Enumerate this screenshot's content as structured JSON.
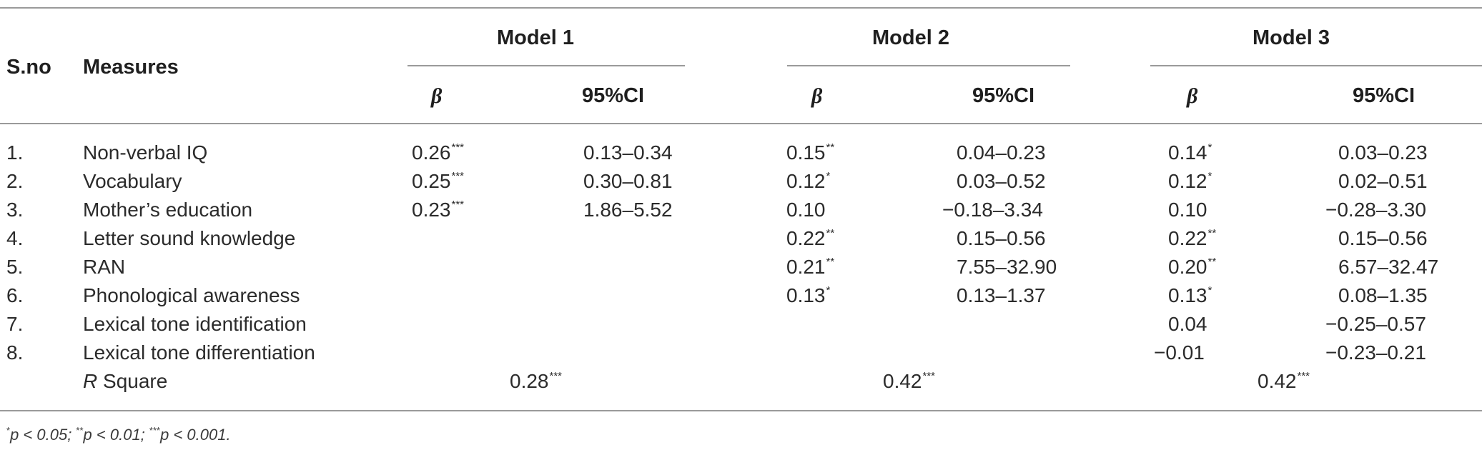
{
  "header": {
    "sno": "S.no",
    "measures": "Measures",
    "models": [
      "Model 1",
      "Model 2",
      "Model 3"
    ],
    "beta": "β",
    "ci": "95%CI"
  },
  "rows": [
    {
      "sno": "1.",
      "measure": "Non-verbal IQ",
      "m1": {
        "b": "0.26",
        "bs": "***",
        "ci": "0.13–0.34"
      },
      "m2": {
        "b": "0.15",
        "bs": "**",
        "ci": "0.04–0.23"
      },
      "m3": {
        "b": "0.14",
        "bs": "*",
        "ci": "0.03–0.23"
      }
    },
    {
      "sno": "2.",
      "measure": "Vocabulary",
      "m1": {
        "b": "0.25",
        "bs": "***",
        "ci": "0.30–0.81"
      },
      "m2": {
        "b": "0.12",
        "bs": "*",
        "ci": "0.03–0.52"
      },
      "m3": {
        "b": "0.12",
        "bs": "*",
        "ci": "0.02–0.51"
      }
    },
    {
      "sno": "3.",
      "measure": "Mother’s education",
      "m1": {
        "b": "0.23",
        "bs": "***",
        "ci": "1.86–5.52"
      },
      "m2": {
        "b": "0.10",
        "bs": "",
        "ci": "−0.18–3.34"
      },
      "m3": {
        "b": "0.10",
        "bs": "",
        "ci": "−0.28–3.30"
      }
    },
    {
      "sno": "4.",
      "measure": "Letter sound knowledge",
      "m1": {
        "b": "",
        "bs": "",
        "ci": ""
      },
      "m2": {
        "b": "0.22",
        "bs": "**",
        "ci": "0.15–0.56"
      },
      "m3": {
        "b": "0.22",
        "bs": "**",
        "ci": "0.15–0.56"
      }
    },
    {
      "sno": "5.",
      "measure": "RAN",
      "m1": {
        "b": "",
        "bs": "",
        "ci": ""
      },
      "m2": {
        "b": "0.21",
        "bs": "**",
        "ci": "7.55–32.90"
      },
      "m3": {
        "b": "0.20",
        "bs": "**",
        "ci": "6.57–32.47"
      }
    },
    {
      "sno": "6.",
      "measure": "Phonological awareness",
      "m1": {
        "b": "",
        "bs": "",
        "ci": ""
      },
      "m2": {
        "b": "0.13",
        "bs": "*",
        "ci": "0.13–1.37"
      },
      "m3": {
        "b": "0.13",
        "bs": "*",
        "ci": "0.08–1.35"
      }
    },
    {
      "sno": "7.",
      "measure": "Lexical tone identification",
      "m1": {
        "b": "",
        "bs": "",
        "ci": ""
      },
      "m2": {
        "b": "",
        "bs": "",
        "ci": ""
      },
      "m3": {
        "b": "0.04",
        "bs": "",
        "ci": "−0.25–0.57"
      }
    },
    {
      "sno": "8.",
      "measure": "Lexical tone differentiation",
      "m1": {
        "b": "",
        "bs": "",
        "ci": ""
      },
      "m2": {
        "b": "",
        "bs": "",
        "ci": ""
      },
      "m3": {
        "b": "−0.01",
        "bs": "",
        "ci": "−0.23–0.21"
      }
    }
  ],
  "rsquare": {
    "label_italic": "R",
    "label_rest": " Square",
    "m1": {
      "v": "0.28",
      "s": "***"
    },
    "m2": {
      "v": "0.42",
      "s": "***"
    },
    "m3": {
      "v": "0.42",
      "s": "***"
    }
  },
  "footnote": [
    {
      "sig": "*",
      "text": "p < 0.05; "
    },
    {
      "sig": "**",
      "text": "p < 0.01; "
    },
    {
      "sig": "***",
      "text": "p < 0.001."
    }
  ]
}
